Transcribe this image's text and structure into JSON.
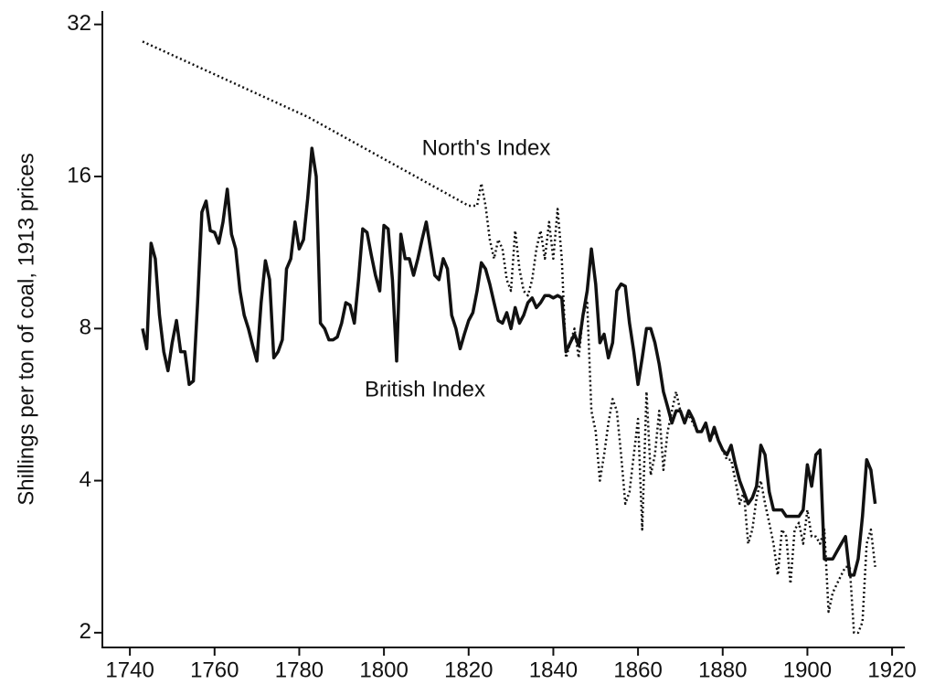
{
  "chart_data": {
    "type": "line",
    "ylabel": "Shillings per ton of coal, 1913 prices",
    "log_y": true,
    "xlim": [
      1733.5,
      1923
    ],
    "ylim": [
      1.87,
      33.6
    ],
    "xticks": [
      1740,
      1760,
      1780,
      1800,
      1820,
      1840,
      1860,
      1880,
      1900,
      1920
    ],
    "yticks": [
      2,
      4,
      8,
      16,
      32
    ],
    "series": [
      {
        "name": "North's Index",
        "color": "#111111",
        "style": "dotted",
        "x": [
          1743,
          1782,
          1820,
          1822,
          1823,
          1824,
          1825,
          1826,
          1827,
          1828,
          1829,
          1830,
          1831,
          1832,
          1833,
          1834,
          1835,
          1836,
          1837,
          1838,
          1839,
          1840,
          1841,
          1842,
          1843,
          1844,
          1845,
          1846,
          1847,
          1848,
          1849,
          1850,
          1851,
          1852,
          1853,
          1854,
          1855,
          1856,
          1857,
          1858,
          1859,
          1860,
          1861,
          1862,
          1863,
          1864,
          1865,
          1866,
          1867,
          1868,
          1869,
          1870,
          1871,
          1872,
          1873,
          1874,
          1875,
          1876,
          1877,
          1878,
          1879,
          1880,
          1881,
          1882,
          1883,
          1884,
          1885,
          1886,
          1887,
          1888,
          1889,
          1890,
          1891,
          1892,
          1893,
          1894,
          1895,
          1896,
          1897,
          1898,
          1899,
          1900,
          1901,
          1902,
          1903,
          1904,
          1905,
          1906,
          1907,
          1908,
          1909,
          1910,
          1911,
          1912,
          1913,
          1914,
          1915,
          1916
        ],
        "values": [
          29.6,
          21,
          14,
          14,
          15.5,
          14,
          12,
          11,
          12,
          11.5,
          10,
          9.5,
          12.5,
          10.5,
          9.5,
          9.3,
          10,
          11.5,
          12.5,
          11,
          13,
          11,
          13.8,
          11,
          7,
          7.5,
          8,
          7,
          8.5,
          9,
          5.5,
          5,
          4,
          4.5,
          5.2,
          5.8,
          5.5,
          4.5,
          3.6,
          3.8,
          4.5,
          5.3,
          3.2,
          6,
          4.1,
          4.5,
          5.5,
          4.2,
          5,
          5.5,
          6,
          5.5,
          5.2,
          5.4,
          5.2,
          5.0,
          5.0,
          5.2,
          4.8,
          5.0,
          4.8,
          4.6,
          4.4,
          4.4,
          4.0,
          3.6,
          3.8,
          3.0,
          3.2,
          3.7,
          4.0,
          3.6,
          3.3,
          3.0,
          2.6,
          3.2,
          3.1,
          2.5,
          3.2,
          3.3,
          3.0,
          3.5,
          3.1,
          3.1,
          3.0,
          3.2,
          2.2,
          2.4,
          2.5,
          2.6,
          2.7,
          2.7,
          2.0,
          2.0,
          2.1,
          3.0,
          3.2,
          2.7
        ]
      },
      {
        "name": "British Index",
        "color": "#111111",
        "style": "solid",
        "x": [
          1743,
          1744,
          1745,
          1746,
          1747,
          1748,
          1749,
          1750,
          1751,
          1752,
          1753,
          1754,
          1755,
          1756,
          1757,
          1758,
          1759,
          1760,
          1761,
          1762,
          1763,
          1764,
          1765,
          1766,
          1767,
          1768,
          1769,
          1770,
          1771,
          1772,
          1773,
          1774,
          1775,
          1776,
          1777,
          1778,
          1779,
          1780,
          1781,
          1782,
          1783,
          1784,
          1785,
          1786,
          1787,
          1788,
          1789,
          1790,
          1791,
          1792,
          1793,
          1794,
          1795,
          1796,
          1797,
          1798,
          1799,
          1800,
          1801,
          1802,
          1803,
          1804,
          1805,
          1806,
          1807,
          1808,
          1809,
          1810,
          1811,
          1812,
          1813,
          1814,
          1815,
          1816,
          1817,
          1818,
          1819,
          1820,
          1821,
          1822,
          1823,
          1824,
          1825,
          1826,
          1827,
          1828,
          1829,
          1830,
          1831,
          1832,
          1833,
          1834,
          1835,
          1836,
          1837,
          1838,
          1839,
          1840,
          1841,
          1842,
          1843,
          1844,
          1845,
          1846,
          1847,
          1848,
          1849,
          1850,
          1851,
          1852,
          1853,
          1854,
          1855,
          1856,
          1857,
          1858,
          1859,
          1860,
          1861,
          1862,
          1863,
          1864,
          1865,
          1866,
          1867,
          1868,
          1869,
          1870,
          1871,
          1872,
          1873,
          1874,
          1875,
          1876,
          1877,
          1878,
          1879,
          1880,
          1881,
          1882,
          1883,
          1884,
          1885,
          1886,
          1887,
          1888,
          1889,
          1890,
          1891,
          1892,
          1893,
          1894,
          1895,
          1896,
          1897,
          1898,
          1899,
          1900,
          1901,
          1902,
          1903,
          1904,
          1905,
          1906,
          1907,
          1908,
          1909,
          1910,
          1911,
          1912,
          1913,
          1914,
          1915,
          1916
        ],
        "values": [
          8,
          7.3,
          11.8,
          11,
          8.5,
          7.2,
          6.6,
          7.5,
          8.3,
          7.2,
          7.2,
          6.2,
          6.3,
          9,
          13.6,
          14.3,
          12.5,
          12.4,
          11.8,
          13,
          15.1,
          12.3,
          11.5,
          9.5,
          8.5,
          8,
          7.4,
          6.9,
          9,
          10.9,
          10,
          7,
          7.2,
          7.6,
          10.5,
          11,
          13,
          11.5,
          12,
          14.5,
          18.2,
          16,
          8.2,
          8,
          7.6,
          7.6,
          7.7,
          8.2,
          9,
          8.9,
          8.2,
          10,
          12.6,
          12.4,
          11.2,
          10.2,
          9.5,
          12.8,
          12.6,
          10,
          6.9,
          12.3,
          11,
          11,
          10.2,
          11,
          12,
          13,
          11.5,
          10.2,
          10,
          11,
          10.5,
          8.5,
          8,
          7.3,
          7.8,
          8.3,
          8.6,
          9.5,
          10.8,
          10.5,
          9.8,
          9,
          8.3,
          8.2,
          8.6,
          8,
          8.8,
          8.2,
          8.5,
          9,
          9.2,
          8.8,
          9,
          9.3,
          9.3,
          9.2,
          9.3,
          9.2,
          7.2,
          7.5,
          7.8,
          7.4,
          8.5,
          9.5,
          11.5,
          9.8,
          7.5,
          7.8,
          7,
          7.5,
          9.5,
          9.8,
          9.7,
          8.2,
          7.2,
          6.2,
          7,
          8,
          8,
          7.5,
          6.8,
          6,
          5.6,
          5.2,
          5.5,
          5.5,
          5.2,
          5.5,
          5.3,
          5,
          5,
          5.2,
          4.8,
          5.1,
          4.8,
          4.6,
          4.5,
          4.7,
          4.3,
          4,
          3.8,
          3.6,
          3.7,
          3.9,
          4.7,
          4.5,
          3.8,
          3.5,
          3.5,
          3.5,
          3.4,
          3.4,
          3.4,
          3.4,
          3.5,
          4.3,
          3.9,
          4.5,
          4.6,
          2.8,
          2.8,
          2.8,
          2.9,
          3.0,
          3.1,
          2.6,
          2.6,
          2.8,
          3.4,
          4.4,
          4.2,
          3.6
        ]
      }
    ]
  }
}
